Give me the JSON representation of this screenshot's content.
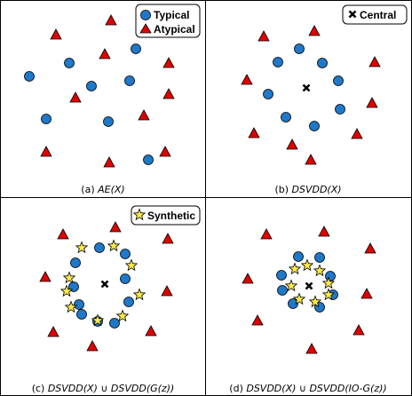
{
  "colors": {
    "typical": "#1f78c8",
    "atypical": "#e00000",
    "synthetic": "#ffe84a",
    "central": "#000000",
    "outline": "#000000"
  },
  "panels": [
    {
      "id": "a",
      "caption_prefix": "(a) ",
      "caption_math": "AE(X)",
      "legend": [
        {
          "icon": "typical-circle-icon",
          "label": "Typical"
        },
        {
          "icon": "atypical-triangle-icon",
          "label": "Atypical"
        }
      ]
    },
    {
      "id": "b",
      "caption_prefix": "(b) ",
      "caption_math": "DSVDD(X)",
      "legend": [
        {
          "icon": "central-cross-icon",
          "label": "Central"
        }
      ]
    },
    {
      "id": "c",
      "caption_prefix": "(c) ",
      "caption_math": "DSVDD(X) ∪ DSVDD(G(z))",
      "legend": [
        {
          "icon": "synthetic-star-icon",
          "label": "Synthetic"
        }
      ]
    },
    {
      "id": "d",
      "caption_prefix": "(d) ",
      "caption_math": "DSVDD(X) ∪ DSVDD(IO-G(z))",
      "legend": []
    }
  ]
}
